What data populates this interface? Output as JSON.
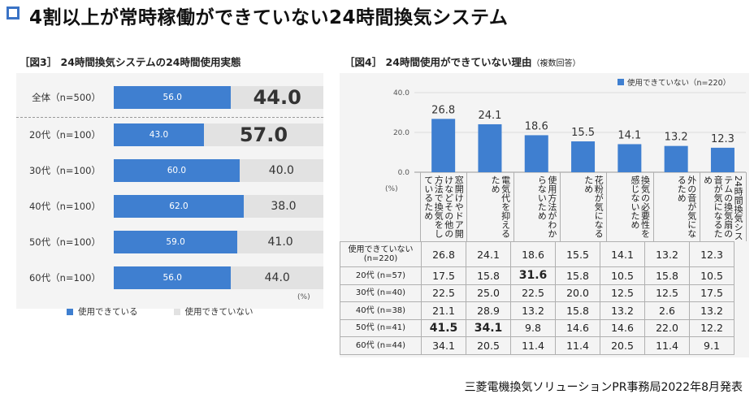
{
  "title": "4割以上が常時稼働ができていない24時間換気システム",
  "fig3": {
    "title": "［図3］ 24時間換気システムの24時間使用実態",
    "unit": "(%)",
    "legend": [
      "使用できている",
      "使用できていない"
    ],
    "colors": {
      "using": "#3f7fd0",
      "not_using": "#e2e2e2"
    }
  },
  "fig4": {
    "title": "［図4］ 24時間使用ができていない理由",
    "title_note": "（複数回答）",
    "legend": "使用できていない（n=220）",
    "pct_label": "(%)",
    "bar_color": "#3f7fd0"
  },
  "chart_data": [
    {
      "type": "bar",
      "orientation": "horizontal",
      "stacked": true,
      "categories": [
        "全体（n=500）",
        "20代（n=100）",
        "30代（n=100）",
        "40代（n=100）",
        "50代（n=100）",
        "60代（n=100）"
      ],
      "series": [
        {
          "name": "使用できている",
          "values": [
            56.0,
            43.0,
            60.0,
            62.0,
            59.0,
            56.0
          ]
        },
        {
          "name": "使用できていない",
          "values": [
            44.0,
            57.0,
            40.0,
            38.0,
            41.0,
            44.0
          ]
        }
      ],
      "xlim": [
        0,
        100
      ]
    },
    {
      "type": "bar",
      "categories": [
        "窓開けやドア開けなどその他の方法で換気をしているため",
        "電気代を抑えるため",
        "使用方法がわからないため",
        "花粉が気になるため",
        "換気の必要性を感じないため",
        "外の音が気になるため",
        "24時間換気システムの換気扇の音が気になるため"
      ],
      "series": [
        {
          "name": "使用できていない（n=220）",
          "values": [
            26.8,
            24.1,
            18.6,
            15.5,
            14.1,
            13.2,
            12.3
          ]
        }
      ],
      "ylim": [
        0,
        40
      ],
      "yticks": [
        "0.0",
        "20.0",
        "40.0"
      ]
    },
    {
      "type": "table",
      "rows": [
        {
          "label": "使用できていない\n(n=220)",
          "values": [
            "26.8",
            "24.1",
            "18.6",
            "15.5",
            "14.1",
            "13.2",
            "12.3"
          ]
        },
        {
          "label": "20代 (n=57)",
          "values": [
            "17.5",
            "15.8",
            "31.6",
            "15.8",
            "10.5",
            "15.8",
            "10.5"
          ]
        },
        {
          "label": "30代 (n=40)",
          "values": [
            "22.5",
            "25.0",
            "22.5",
            "20.0",
            "12.5",
            "12.5",
            "17.5"
          ]
        },
        {
          "label": "40代 (n=38)",
          "values": [
            "21.1",
            "28.9",
            "13.2",
            "15.8",
            "13.2",
            "2.6",
            "13.2"
          ]
        },
        {
          "label": "50代 (n=41)",
          "values": [
            "41.5",
            "34.1",
            "9.8",
            "14.6",
            "14.6",
            "22.0",
            "12.2"
          ]
        },
        {
          "label": "60代 (n=44)",
          "values": [
            "34.1",
            "20.5",
            "11.4",
            "11.4",
            "20.5",
            "11.4",
            "9.1"
          ]
        }
      ],
      "bold_cells": [
        [
          1,
          2
        ],
        [
          4,
          0
        ],
        [
          4,
          1
        ]
      ]
    }
  ],
  "footer": "三菱電機換気ソリューションPR事務局2022年8月発表"
}
